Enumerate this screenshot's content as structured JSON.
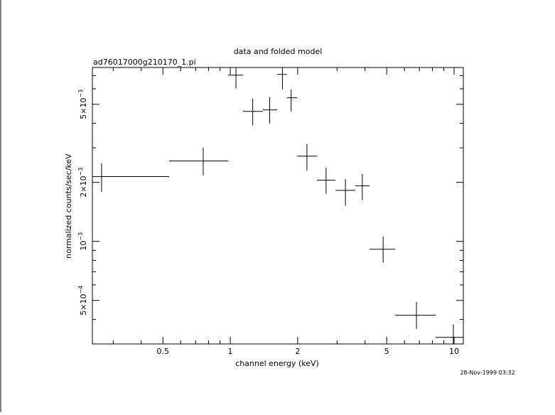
{
  "chart_data": {
    "type": "errorbar",
    "title": "data and folded model",
    "subtitle": "ad76017000g210170_1.pi",
    "x_label": "channel energy (keV)",
    "y_label": "normalized counts/sec/keV",
    "annotation": "28-Nov-1999 03:32",
    "xlog": true,
    "ylog": true,
    "xlim": [
      0.242,
      11.0
    ],
    "ylim": [
      0.0003,
      0.0077
    ],
    "xticks": [
      0.5,
      1,
      2,
      5,
      10
    ],
    "xminorticks": [
      0.3,
      0.4,
      0.6,
      0.7,
      0.8,
      0.9,
      3,
      4,
      6,
      7,
      8,
      9
    ],
    "yticks": [
      {
        "value": 0.0005,
        "label": "5×10",
        "exponent": "−4"
      },
      {
        "value": 0.001,
        "label": "10",
        "exponent": "−3"
      },
      {
        "value": 0.002,
        "label": "2×10",
        "exponent": "−3"
      },
      {
        "value": 0.005,
        "label": "5×10",
        "exponent": "−3"
      }
    ],
    "yminorticks": [
      0.0004,
      0.0006,
      0.0007,
      0.0008,
      0.0009,
      0.003,
      0.004,
      0.006,
      0.007
    ],
    "series": [
      {
        "color": "#000000",
        "x": [
          0.266,
          0.757,
          1.06,
          1.26,
          1.5,
          1.71,
          1.87,
          2.2,
          2.68,
          3.27,
          3.89,
          4.82,
          6.79,
          9.93
        ],
        "x_low": [
          0.242,
          0.533,
          0.978,
          1.14,
          1.4,
          1.62,
          1.79,
          1.99,
          2.44,
          2.95,
          3.62,
          4.19,
          5.45,
          8.27
        ],
        "x_high": [
          0.533,
          0.978,
          1.14,
          1.4,
          1.62,
          1.79,
          1.99,
          2.44,
          2.95,
          3.62,
          4.19,
          5.45,
          8.27,
          11.0
        ],
        "values": [
          0.00214,
          0.00257,
          0.00704,
          0.0046,
          0.00468,
          0.0071,
          0.0054,
          0.00272,
          0.00205,
          0.00182,
          0.00192,
          0.000912,
          0.00042,
          0.000324
        ],
        "y_low": [
          0.00179,
          0.00217,
          0.00601,
          0.0039,
          0.00399,
          0.00596,
          0.0046,
          0.0023,
          0.00175,
          0.00152,
          0.00162,
          0.000779,
          0.000358,
          0.00029
        ],
        "y_high": [
          0.0025,
          0.00301,
          0.00766,
          0.00535,
          0.00544,
          0.00766,
          0.00596,
          0.00314,
          0.00238,
          0.00208,
          0.00221,
          0.00106,
          0.000492,
          0.000377
        ]
      }
    ]
  }
}
